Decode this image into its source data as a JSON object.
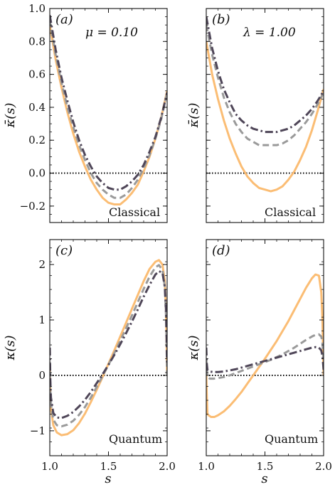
{
  "figure": {
    "xlabel": "s",
    "colors": {
      "solid": "#fbbd74",
      "dashed": "#9a9a9a",
      "dashdot": "#4f4658",
      "zero_line": "#000000"
    }
  },
  "chart_data": [
    {
      "type": "line",
      "panel_label": "(a)",
      "param_text": "μ = 0.10",
      "regime_text": "Classical",
      "ylabel": "κ̄(s)",
      "xlim": [
        1.0,
        2.0
      ],
      "ylim": [
        -0.3,
        1.0
      ],
      "xticks": [
        1.0,
        1.5,
        2.0
      ],
      "yticks": [
        -0.2,
        0.0,
        0.2,
        0.4,
        0.6,
        0.8,
        1.0
      ],
      "ytick_labels": [
        "−0.2",
        "0.0",
        "0.2",
        "0.4",
        "0.6",
        "0.8",
        "1.0"
      ],
      "show_x_ticklabels": false,
      "zero_line": true,
      "series": [
        {
          "style": "solid",
          "x": [
            1.0,
            1.05,
            1.1,
            1.15,
            1.2,
            1.25,
            1.3,
            1.35,
            1.4,
            1.45,
            1.5,
            1.55,
            1.6,
            1.65,
            1.7,
            1.75,
            1.8,
            1.85,
            1.9,
            1.95,
            2.0
          ],
          "y": [
            0.9,
            0.69,
            0.52,
            0.37,
            0.24,
            0.13,
            0.04,
            -0.04,
            -0.1,
            -0.15,
            -0.18,
            -0.19,
            -0.19,
            -0.16,
            -0.12,
            -0.07,
            0.01,
            0.1,
            0.21,
            0.34,
            0.5
          ]
        },
        {
          "style": "dashed",
          "x": [
            1.0,
            1.05,
            1.1,
            1.15,
            1.2,
            1.25,
            1.3,
            1.35,
            1.4,
            1.45,
            1.5,
            1.55,
            1.6,
            1.65,
            1.7,
            1.75,
            1.8,
            1.85,
            1.9,
            1.95,
            2.0
          ],
          "y": [
            0.93,
            0.72,
            0.55,
            0.4,
            0.28,
            0.17,
            0.08,
            0.0,
            -0.06,
            -0.1,
            -0.13,
            -0.15,
            -0.15,
            -0.13,
            -0.09,
            -0.04,
            0.03,
            0.11,
            0.21,
            0.33,
            0.49
          ]
        },
        {
          "style": "dashdot",
          "x": [
            1.0,
            1.05,
            1.1,
            1.15,
            1.2,
            1.25,
            1.3,
            1.35,
            1.4,
            1.45,
            1.5,
            1.55,
            1.6,
            1.65,
            1.7,
            1.75,
            1.8,
            1.85,
            1.9,
            1.95,
            2.0
          ],
          "y": [
            0.96,
            0.75,
            0.58,
            0.44,
            0.31,
            0.2,
            0.11,
            0.04,
            -0.02,
            -0.06,
            -0.09,
            -0.1,
            -0.1,
            -0.08,
            -0.05,
            -0.01,
            0.05,
            0.13,
            0.22,
            0.34,
            0.49
          ]
        }
      ]
    },
    {
      "type": "line",
      "panel_label": "(b)",
      "param_text": "λ = 1.00",
      "regime_text": "Classical",
      "ylabel": "κ̄(s)",
      "xlim": [
        1.0,
        2.0
      ],
      "ylim": [
        -0.3,
        1.0
      ],
      "xticks": [
        1.0,
        1.5,
        2.0
      ],
      "yticks": [
        -0.2,
        0.0,
        0.2,
        0.4,
        0.6,
        0.8,
        1.0
      ],
      "ytick_labels": [],
      "show_x_ticklabels": false,
      "zero_line": true,
      "series": [
        {
          "style": "solid",
          "x": [
            1.0,
            1.05,
            1.1,
            1.15,
            1.2,
            1.25,
            1.3,
            1.35,
            1.4,
            1.45,
            1.5,
            1.55,
            1.6,
            1.65,
            1.7,
            1.75,
            1.8,
            1.85,
            1.9,
            1.95,
            2.0
          ],
          "y": [
            0.8,
            0.6,
            0.45,
            0.32,
            0.21,
            0.12,
            0.04,
            -0.02,
            -0.06,
            -0.09,
            -0.1,
            -0.11,
            -0.1,
            -0.08,
            -0.04,
            0.01,
            0.08,
            0.16,
            0.26,
            0.38,
            0.51
          ]
        },
        {
          "style": "dashed",
          "x": [
            1.0,
            1.05,
            1.1,
            1.15,
            1.2,
            1.25,
            1.3,
            1.35,
            1.4,
            1.45,
            1.5,
            1.55,
            1.6,
            1.65,
            1.7,
            1.75,
            1.8,
            1.85,
            1.9,
            1.95,
            2.0
          ],
          "y": [
            0.9,
            0.72,
            0.58,
            0.46,
            0.37,
            0.3,
            0.25,
            0.21,
            0.19,
            0.17,
            0.17,
            0.17,
            0.17,
            0.18,
            0.2,
            0.23,
            0.27,
            0.31,
            0.36,
            0.42,
            0.49
          ]
        },
        {
          "style": "dashdot",
          "x": [
            1.0,
            1.05,
            1.1,
            1.15,
            1.2,
            1.25,
            1.3,
            1.35,
            1.4,
            1.45,
            1.5,
            1.55,
            1.6,
            1.65,
            1.7,
            1.75,
            1.8,
            1.85,
            1.9,
            1.95,
            2.0
          ],
          "y": [
            0.95,
            0.76,
            0.62,
            0.51,
            0.43,
            0.36,
            0.32,
            0.29,
            0.27,
            0.26,
            0.25,
            0.25,
            0.25,
            0.26,
            0.27,
            0.29,
            0.32,
            0.35,
            0.39,
            0.44,
            0.5
          ]
        }
      ]
    },
    {
      "type": "line",
      "panel_label": "(c)",
      "param_text": "",
      "regime_text": "Quantum",
      "ylabel": "κ(s)",
      "xlim": [
        1.0,
        2.0
      ],
      "ylim": [
        -1.45,
        2.45
      ],
      "xticks": [
        1.0,
        1.5,
        2.0
      ],
      "xtick_labels": [
        "1.0",
        "1.5",
        "2.0"
      ],
      "yticks": [
        -1,
        0,
        1,
        2
      ],
      "ytick_labels": [
        "−1",
        "0",
        "1",
        "2"
      ],
      "show_x_ticklabels": true,
      "zero_line": true,
      "series": [
        {
          "style": "solid",
          "x": [
            1.0,
            1.005,
            1.01,
            1.03,
            1.06,
            1.1,
            1.15,
            1.2,
            1.25,
            1.3,
            1.35,
            1.4,
            1.45,
            1.5,
            1.55,
            1.6,
            1.65,
            1.7,
            1.75,
            1.8,
            1.85,
            1.9,
            1.93,
            1.96,
            1.98,
            1.99,
            2.0
          ],
          "y": [
            0.15,
            -0.3,
            -0.6,
            -0.9,
            -1.03,
            -1.08,
            -1.06,
            -0.99,
            -0.86,
            -0.69,
            -0.48,
            -0.26,
            -0.03,
            0.21,
            0.45,
            0.7,
            0.95,
            1.2,
            1.45,
            1.7,
            1.92,
            2.05,
            2.08,
            2.0,
            1.7,
            1.2,
            0.0
          ]
        },
        {
          "style": "dashed",
          "x": [
            1.0,
            1.005,
            1.01,
            1.03,
            1.06,
            1.1,
            1.15,
            1.2,
            1.25,
            1.3,
            1.35,
            1.4,
            1.45,
            1.5,
            1.55,
            1.6,
            1.65,
            1.7,
            1.75,
            1.8,
            1.85,
            1.9,
            1.93,
            1.96,
            1.98,
            1.99,
            2.0
          ],
          "y": [
            0.25,
            -0.2,
            -0.5,
            -0.8,
            -0.9,
            -0.92,
            -0.89,
            -0.82,
            -0.71,
            -0.57,
            -0.4,
            -0.21,
            -0.01,
            0.19,
            0.4,
            0.62,
            0.85,
            1.08,
            1.32,
            1.56,
            1.78,
            1.95,
            1.99,
            1.9,
            1.6,
            1.1,
            0.0
          ]
        },
        {
          "style": "dashdot",
          "x": [
            1.0,
            1.005,
            1.01,
            1.03,
            1.06,
            1.1,
            1.15,
            1.2,
            1.25,
            1.3,
            1.35,
            1.4,
            1.45,
            1.5,
            1.55,
            1.6,
            1.65,
            1.7,
            1.75,
            1.8,
            1.85,
            1.9,
            1.93,
            1.96,
            1.98,
            1.99,
            2.0
          ],
          "y": [
            0.5,
            -0.1,
            -0.4,
            -0.68,
            -0.76,
            -0.77,
            -0.73,
            -0.66,
            -0.56,
            -0.44,
            -0.3,
            -0.14,
            0.02,
            0.19,
            0.37,
            0.56,
            0.76,
            0.97,
            1.19,
            1.42,
            1.63,
            1.82,
            1.88,
            1.85,
            1.6,
            1.2,
            0.2
          ]
        }
      ]
    },
    {
      "type": "line",
      "panel_label": "(d)",
      "param_text": "",
      "regime_text": "Quantum",
      "ylabel": "κ(s)",
      "xlim": [
        1.0,
        2.0
      ],
      "ylim": [
        -1.45,
        2.45
      ],
      "xticks": [
        1.0,
        1.5,
        2.0
      ],
      "xtick_labels": [
        "1.0",
        "1.5",
        "2.0"
      ],
      "yticks": [
        -1,
        0,
        1,
        2
      ],
      "ytick_labels": [],
      "show_x_ticklabels": true,
      "zero_line": true,
      "series": [
        {
          "style": "solid",
          "x": [
            1.0,
            1.005,
            1.01,
            1.02,
            1.04,
            1.07,
            1.1,
            1.15,
            1.2,
            1.25,
            1.3,
            1.35,
            1.4,
            1.45,
            1.5,
            1.55,
            1.6,
            1.65,
            1.7,
            1.75,
            1.8,
            1.85,
            1.9,
            1.93,
            1.96,
            1.98,
            1.99,
            2.0
          ],
          "y": [
            0.0,
            -0.4,
            -0.7,
            -0.72,
            -0.75,
            -0.75,
            -0.72,
            -0.65,
            -0.55,
            -0.43,
            -0.3,
            -0.15,
            0.0,
            0.15,
            0.3,
            0.46,
            0.62,
            0.8,
            0.98,
            1.18,
            1.38,
            1.58,
            1.75,
            1.82,
            1.8,
            1.5,
            1.0,
            0.0
          ]
        },
        {
          "style": "dashed",
          "x": [
            1.0,
            1.005,
            1.01,
            1.03,
            1.06,
            1.1,
            1.15,
            1.2,
            1.25,
            1.3,
            1.35,
            1.4,
            1.45,
            1.5,
            1.55,
            1.6,
            1.65,
            1.7,
            1.75,
            1.8,
            1.85,
            1.9,
            1.93,
            1.96,
            1.98,
            1.99,
            2.0
          ],
          "y": [
            0.3,
            0.1,
            -0.02,
            -0.06,
            -0.06,
            -0.05,
            -0.03,
            0.0,
            0.04,
            0.08,
            0.12,
            0.16,
            0.2,
            0.24,
            0.28,
            0.33,
            0.38,
            0.44,
            0.5,
            0.57,
            0.64,
            0.7,
            0.73,
            0.74,
            0.7,
            0.6,
            0.2
          ]
        },
        {
          "style": "dashdot",
          "x": [
            1.0,
            1.005,
            1.01,
            1.03,
            1.06,
            1.1,
            1.15,
            1.2,
            1.25,
            1.3,
            1.35,
            1.4,
            1.45,
            1.5,
            1.55,
            1.6,
            1.65,
            1.7,
            1.75,
            1.8,
            1.85,
            1.9,
            1.93,
            1.96,
            1.98,
            1.99,
            2.0
          ],
          "y": [
            0.5,
            0.2,
            0.1,
            0.07,
            0.06,
            0.06,
            0.07,
            0.09,
            0.11,
            0.14,
            0.17,
            0.2,
            0.23,
            0.26,
            0.29,
            0.32,
            0.35,
            0.38,
            0.41,
            0.44,
            0.47,
            0.5,
            0.51,
            0.5,
            0.45,
            0.35,
            0.1
          ]
        }
      ]
    }
  ]
}
